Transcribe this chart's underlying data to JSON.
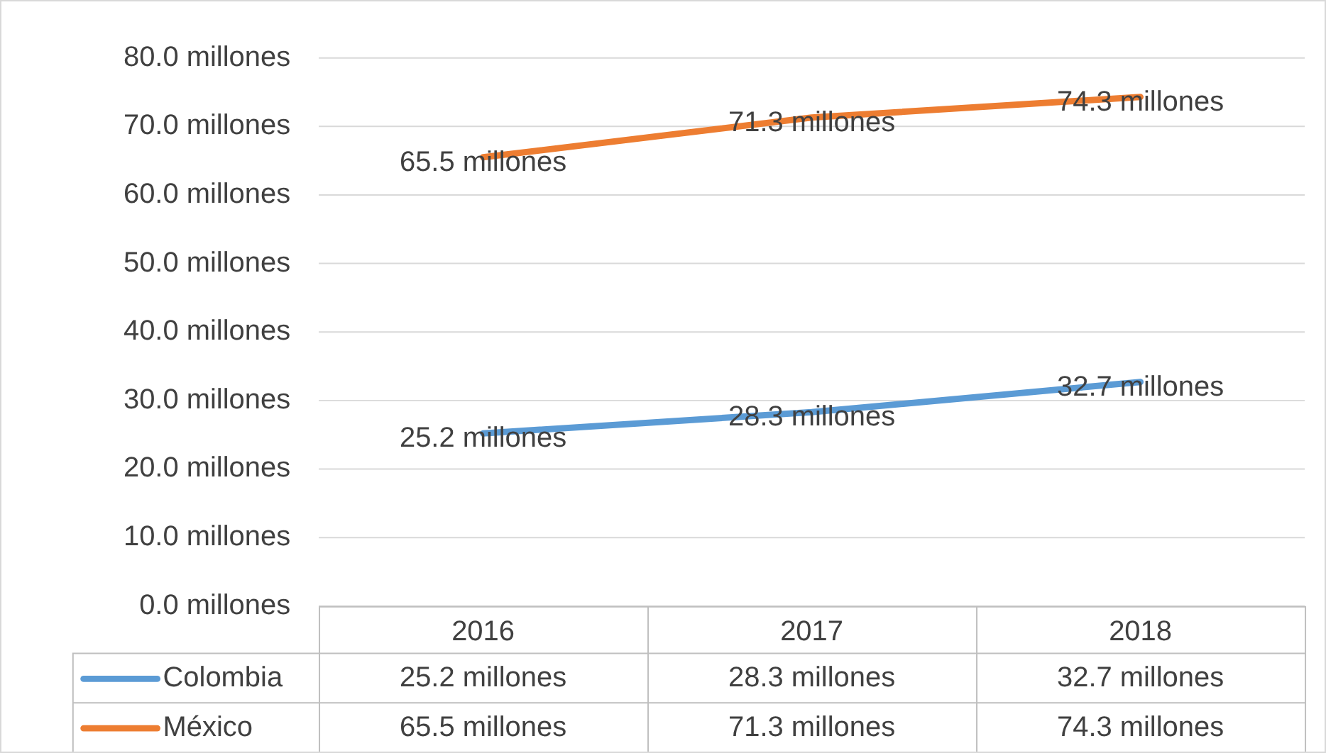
{
  "chart_data": {
    "type": "line",
    "categories": [
      "2016",
      "2017",
      "2018"
    ],
    "series": [
      {
        "name": "Colombia",
        "color": "#5b9bd5",
        "values": [
          25.2,
          28.3,
          32.7
        ],
        "value_labels": [
          "25.2 millones",
          "28.3 millones",
          "32.7 millones"
        ]
      },
      {
        "name": "México",
        "color": "#ed7d31",
        "values": [
          65.5,
          71.3,
          74.3
        ],
        "value_labels": [
          "65.5 millones",
          "71.3 millones",
          "74.3 millones"
        ]
      }
    ],
    "ylim": [
      0,
      80
    ],
    "yticks": [
      {
        "value": 0,
        "label": "0.0 millones"
      },
      {
        "value": 10,
        "label": "10.0 millones"
      },
      {
        "value": 20,
        "label": "20.0 millones"
      },
      {
        "value": 30,
        "label": "30.0 millones"
      },
      {
        "value": 40,
        "label": "40.0 millones"
      },
      {
        "value": 50,
        "label": "50.0 millones"
      },
      {
        "value": 60,
        "label": "60.0 millones"
      },
      {
        "value": 70,
        "label": "70.0 millones"
      },
      {
        "value": 80,
        "label": "80.0 millones"
      }
    ],
    "grid": "y",
    "legend": "bottom",
    "marker": "none",
    "line_style": "solid"
  }
}
